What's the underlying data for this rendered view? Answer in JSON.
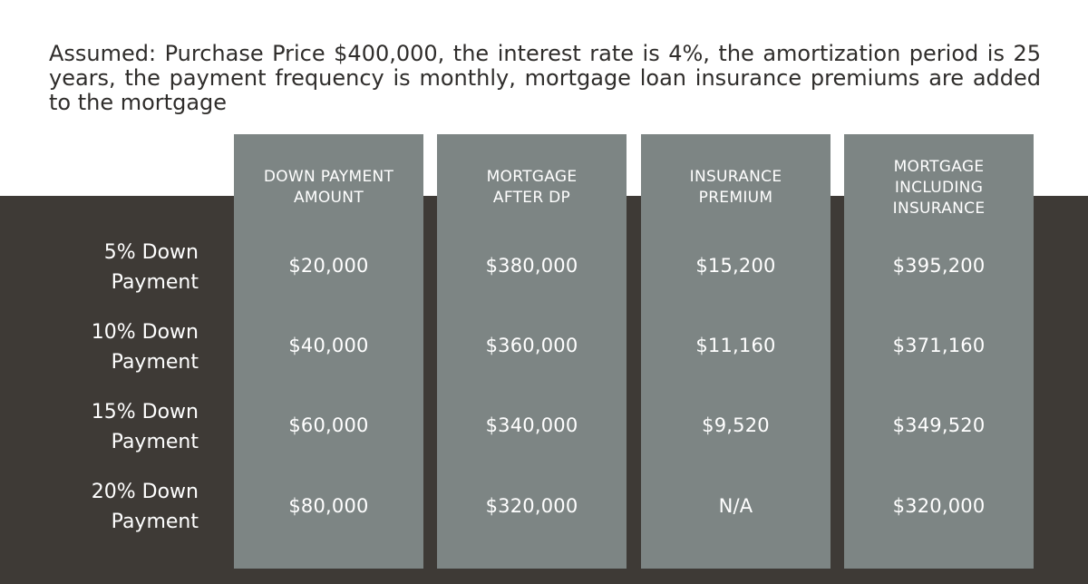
{
  "assumption_text": "Assumed: Purchase Price $400,000, the interest rate is 4%, the amortization period is 25 years, the payment frequency is monthly, mortgage loan insurance premiums are added to the mortgage",
  "columns": [
    {
      "header": "DOWN PAYMENT\nAMOUNT",
      "values": [
        "$20,000",
        "$40,000",
        "$60,000",
        "$80,000"
      ]
    },
    {
      "header": "MORTGAGE\nAFTER DP",
      "values": [
        "$380,000",
        "$360,000",
        "$340,000",
        "$320,000"
      ]
    },
    {
      "header": "INSURANCE\nPREMIUM",
      "values": [
        "$15,200",
        "$11,160",
        "$9,520",
        "N/A"
      ]
    },
    {
      "header": "MORTGAGE\nINCLUDING\nINSURANCE",
      "values": [
        "$395,200",
        "$371,160",
        "$349,520",
        "$320,000"
      ]
    }
  ],
  "rows": [
    {
      "label": "5% Down\nPayment"
    },
    {
      "label": "10% Down\nPayment"
    },
    {
      "label": "15% Down\nPayment"
    },
    {
      "label": "20% Down\nPayment"
    }
  ],
  "colors": {
    "background_top": "#ffffff",
    "background_bottom": "#3e3a36",
    "column_fill": "#7d8584",
    "text_light": "#ffffff",
    "text_dark": "#2f2d2b"
  }
}
